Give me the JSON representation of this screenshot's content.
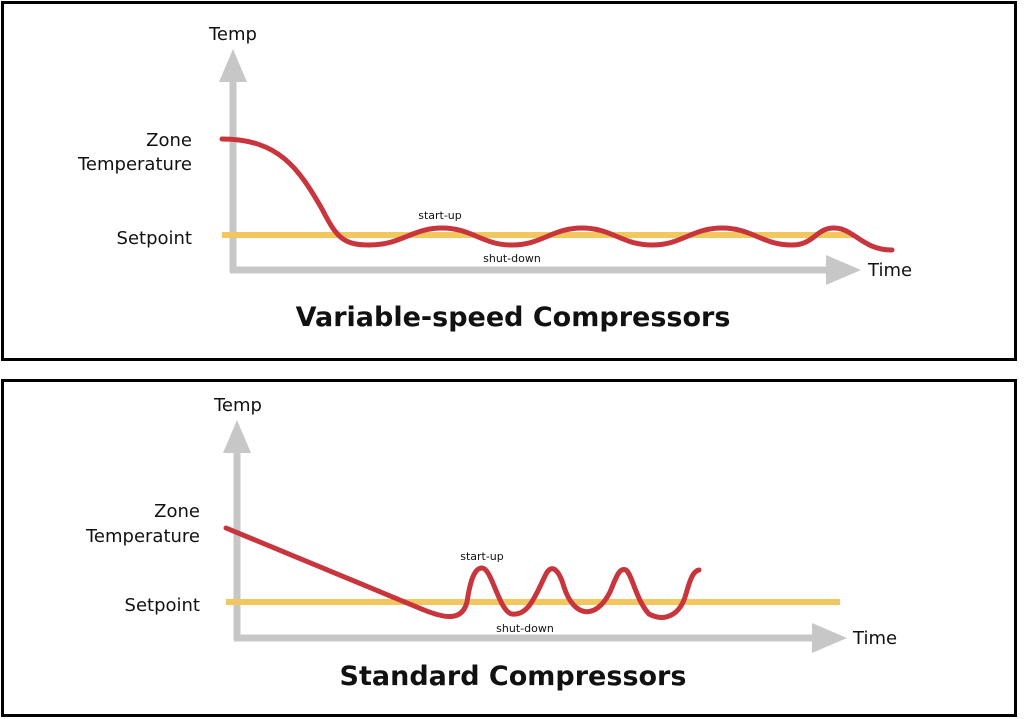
{
  "colors": {
    "axis": "#c7c7c7",
    "setpoint": "#f2c760",
    "curve": "#c8353c",
    "border": "#000000"
  },
  "top": {
    "y_axis_label": "Temp",
    "x_axis_label": "Time",
    "zone_label_line1": "Zone",
    "zone_label_line2": "Temperature",
    "setpoint_label": "Setpoint",
    "startup_label": "start-up",
    "shutdown_label": "shut-down",
    "title": "Variable-speed Compressors"
  },
  "bottom": {
    "y_axis_label": "Temp",
    "x_axis_label": "Time",
    "zone_label_line1": "Zone",
    "zone_label_line2": "Temperature",
    "setpoint_label": "Setpoint",
    "startup_label": "start-up",
    "shutdown_label": "shut-down",
    "title": "Standard Compressors"
  }
}
